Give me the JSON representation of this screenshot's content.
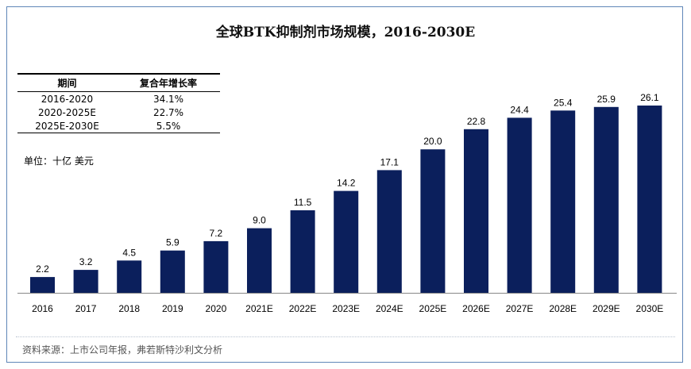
{
  "title": "全球BTK抑制剂市场规模，2016-2030E",
  "cagr_table": {
    "headers": [
      "期间",
      "复合年增长率"
    ],
    "rows": [
      [
        "2016-2020",
        "34.1%"
      ],
      [
        "2020-2025E",
        "22.7%"
      ],
      [
        "2025E-2030E",
        "5.5%"
      ]
    ]
  },
  "unit_label": "单位：十亿 美元",
  "source": "资料来源：上市公司年报，弗若斯特沙利文分析",
  "colors": {
    "bar": "#0b1f5c",
    "frame": "#5f86b8"
  },
  "chart_data": {
    "type": "bar",
    "title": "全球BTK抑制剂市场规模，2016-2030E",
    "categories": [
      "2016",
      "2017",
      "2018",
      "2019",
      "2020",
      "2021E",
      "2022E",
      "2023E",
      "2024E",
      "2025E",
      "2026E",
      "2027E",
      "2028E",
      "2029E",
      "2030E"
    ],
    "values": [
      2.2,
      3.2,
      4.5,
      5.9,
      7.2,
      9.0,
      11.5,
      14.2,
      17.1,
      20.0,
      22.8,
      24.4,
      25.4,
      25.9,
      26.1
    ],
    "value_labels": [
      "2.2",
      "3.2",
      "4.5",
      "5.9",
      "7.2",
      "9.0",
      "11.5",
      "14.2",
      "17.1",
      "20.0",
      "22.8",
      "24.4",
      "25.4",
      "25.9",
      "26.1"
    ],
    "xlabel": "",
    "ylabel": "",
    "ylim": [
      0,
      26.1
    ],
    "grid": false,
    "legend": "none"
  }
}
